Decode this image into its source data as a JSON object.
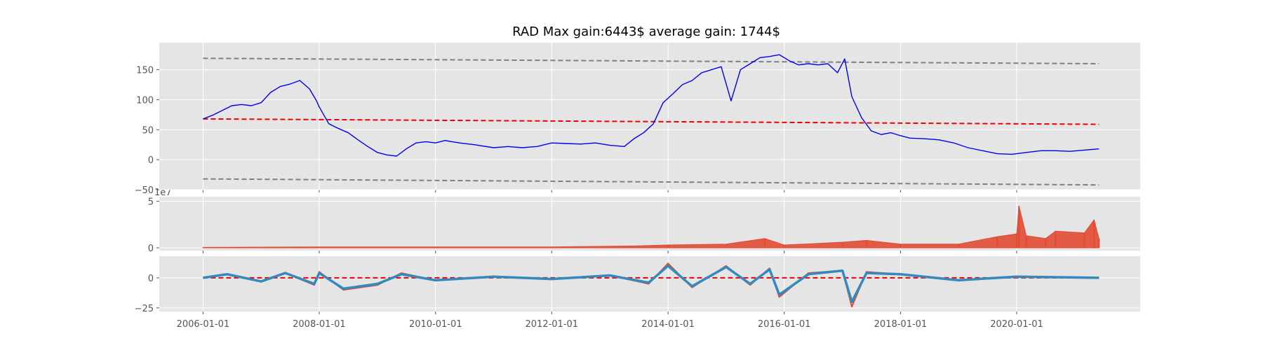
{
  "chart_data": [
    {
      "type": "line",
      "title": "RAD Max gain:6443$  average gain: 1744$",
      "xlabel": "",
      "ylabel": "",
      "x_ticks": [
        "2006-01-01",
        "2008-01-01",
        "2010-01-01",
        "2012-01-01",
        "2014-01-01",
        "2016-01-01",
        "2018-01-01",
        "2020-01-01"
      ],
      "xlim": [
        "2005-04-01",
        "2022-02-15"
      ],
      "y_ticks": [
        -50,
        0,
        50,
        100,
        150
      ],
      "ylim": [
        -50,
        195
      ],
      "grid": true,
      "series": [
        {
          "style": "solid",
          "color": "#0000ee",
          "x": [
            "2006-01-01",
            "2006-03-01",
            "2006-05-01",
            "2006-07-01",
            "2006-09-01",
            "2006-11-01",
            "2007-01-01",
            "2007-03-01",
            "2007-05-01",
            "2007-07-01",
            "2007-09-01",
            "2007-11-01",
            "2007-12-15",
            "2008-01-01",
            "2008-03-01",
            "2008-05-01",
            "2008-07-01",
            "2008-09-01",
            "2008-11-01",
            "2009-01-01",
            "2009-03-01",
            "2009-05-01",
            "2009-07-01",
            "2009-09-01",
            "2009-11-01",
            "2010-01-01",
            "2010-03-01",
            "2010-06-01",
            "2010-09-01",
            "2011-01-01",
            "2011-04-01",
            "2011-07-01",
            "2011-10-01",
            "2012-01-01",
            "2012-04-01",
            "2012-07-01",
            "2012-10-01",
            "2013-01-01",
            "2013-04-01",
            "2013-06-01",
            "2013-08-01",
            "2013-10-01",
            "2013-12-01",
            "2014-02-01",
            "2014-04-01",
            "2014-06-01",
            "2014-08-01",
            "2014-10-01",
            "2014-12-01",
            "2015-02-01",
            "2015-04-01",
            "2015-06-01",
            "2015-08-01",
            "2015-10-01",
            "2015-12-01",
            "2016-02-01",
            "2016-04-01",
            "2016-06-01",
            "2016-08-01",
            "2016-10-01",
            "2016-12-01",
            "2017-01-15",
            "2017-03-01",
            "2017-05-01",
            "2017-07-01",
            "2017-09-01",
            "2017-11-01",
            "2018-01-01",
            "2018-03-01",
            "2018-06-01",
            "2018-09-01",
            "2018-12-01",
            "2019-03-01",
            "2019-06-01",
            "2019-09-01",
            "2019-12-01",
            "2020-03-01",
            "2020-06-01",
            "2020-09-01",
            "2020-12-01",
            "2021-03-01",
            "2021-06-01"
          ],
          "values": [
            68,
            74,
            82,
            90,
            92,
            90,
            95,
            112,
            122,
            126,
            132,
            118,
            98,
            88,
            60,
            52,
            45,
            33,
            22,
            12,
            8,
            6,
            18,
            28,
            30,
            28,
            32,
            28,
            25,
            20,
            22,
            20,
            22,
            28,
            27,
            26,
            28,
            24,
            22,
            35,
            45,
            60,
            95,
            110,
            125,
            132,
            145,
            150,
            155,
            98,
            150,
            160,
            170,
            172,
            175,
            165,
            158,
            160,
            158,
            160,
            145,
            168,
            105,
            70,
            48,
            42,
            45,
            40,
            36,
            35,
            33,
            28,
            20,
            15,
            10,
            9,
            12,
            15,
            15,
            14,
            16,
            18
          ]
        }
      ],
      "trend_lines": [
        {
          "style": "dashed",
          "color": "#ee0000",
          "x": [
            "2006-01-01",
            "2021-06-01"
          ],
          "values": [
            68,
            59
          ]
        },
        {
          "style": "dashed",
          "color": "#808080",
          "x": [
            "2006-01-01",
            "2021-06-01"
          ],
          "values": [
            169,
            160
          ]
        },
        {
          "style": "dashed",
          "color": "#808080",
          "x": [
            "2006-01-01",
            "2021-06-01"
          ],
          "values": [
            -32,
            -42
          ]
        }
      ]
    },
    {
      "type": "area",
      "offset_text": "1e7",
      "y_ticks": [
        0,
        5
      ],
      "ylim": [
        -0.3,
        5.5
      ],
      "grid": true,
      "series": [
        {
          "color": "#e24a33",
          "x": [
            "2006-01-01",
            "2008-01-01",
            "2010-01-01",
            "2012-01-01",
            "2013-06-01",
            "2014-01-01",
            "2015-01-01",
            "2015-09-01",
            "2016-01-01",
            "2017-01-01",
            "2017-06-01",
            "2018-01-01",
            "2019-01-01",
            "2019-09-01",
            "2020-01-01",
            "2020-01-15",
            "2020-03-01",
            "2020-07-01",
            "2020-09-01",
            "2021-03-01",
            "2021-05-01",
            "2021-06-01"
          ],
          "values": [
            0.05,
            0.1,
            0.1,
            0.1,
            0.2,
            0.3,
            0.4,
            1.0,
            0.3,
            0.6,
            0.8,
            0.4,
            0.4,
            1.2,
            1.5,
            4.5,
            1.3,
            1.0,
            1.8,
            1.6,
            3.0,
            1.0
          ]
        }
      ]
    },
    {
      "type": "line",
      "y_ticks": [
        -25,
        0
      ],
      "ylim": [
        -28,
        18
      ],
      "grid": true,
      "series": [
        {
          "color": "#e24a33",
          "x": [
            "2006-01-01",
            "2006-06-01",
            "2007-01-01",
            "2007-06-01",
            "2007-12-01",
            "2008-01-01",
            "2008-06-01",
            "2009-01-01",
            "2009-06-01",
            "2010-01-01",
            "2011-01-01",
            "2012-01-01",
            "2013-01-01",
            "2013-09-01",
            "2014-01-01",
            "2014-06-01",
            "2015-01-01",
            "2015-06-01",
            "2015-10-01",
            "2015-12-01",
            "2016-06-01",
            "2017-01-01",
            "2017-03-01",
            "2017-06-01",
            "2018-01-01",
            "2019-01-01",
            "2020-01-01",
            "2021-06-01"
          ],
          "values": [
            0,
            3,
            -3,
            4,
            -6,
            5,
            -10,
            -6,
            4,
            -2,
            1,
            -1,
            2,
            -5,
            12,
            -8,
            10,
            -6,
            8,
            -16,
            4,
            6,
            -24,
            5,
            3,
            -2,
            1,
            0
          ]
        },
        {
          "color": "#348abd",
          "x": [
            "2006-01-01",
            "2006-06-01",
            "2007-01-01",
            "2007-06-01",
            "2007-12-01",
            "2008-01-01",
            "2008-06-01",
            "2009-01-01",
            "2009-06-01",
            "2010-01-01",
            "2011-01-01",
            "2012-01-01",
            "2013-01-01",
            "2013-09-01",
            "2014-01-01",
            "2014-06-01",
            "2015-01-01",
            "2015-06-01",
            "2015-10-01",
            "2015-12-01",
            "2016-06-01",
            "2017-01-01",
            "2017-03-01",
            "2017-06-01",
            "2018-01-01",
            "2019-01-01",
            "2020-01-01",
            "2021-06-01"
          ],
          "values": [
            0,
            3,
            -3,
            4,
            -5,
            4,
            -9,
            -5,
            3,
            -2,
            1,
            -1,
            2,
            -4,
            10,
            -7,
            9,
            -5,
            7,
            -14,
            3,
            6,
            -20,
            4,
            3,
            -2,
            1,
            0
          ]
        }
      ],
      "trend_lines": [
        {
          "style": "dashed",
          "color": "#ee0000",
          "x": [
            "2006-01-01",
            "2021-06-01"
          ],
          "values": [
            0,
            0
          ]
        }
      ]
    }
  ]
}
